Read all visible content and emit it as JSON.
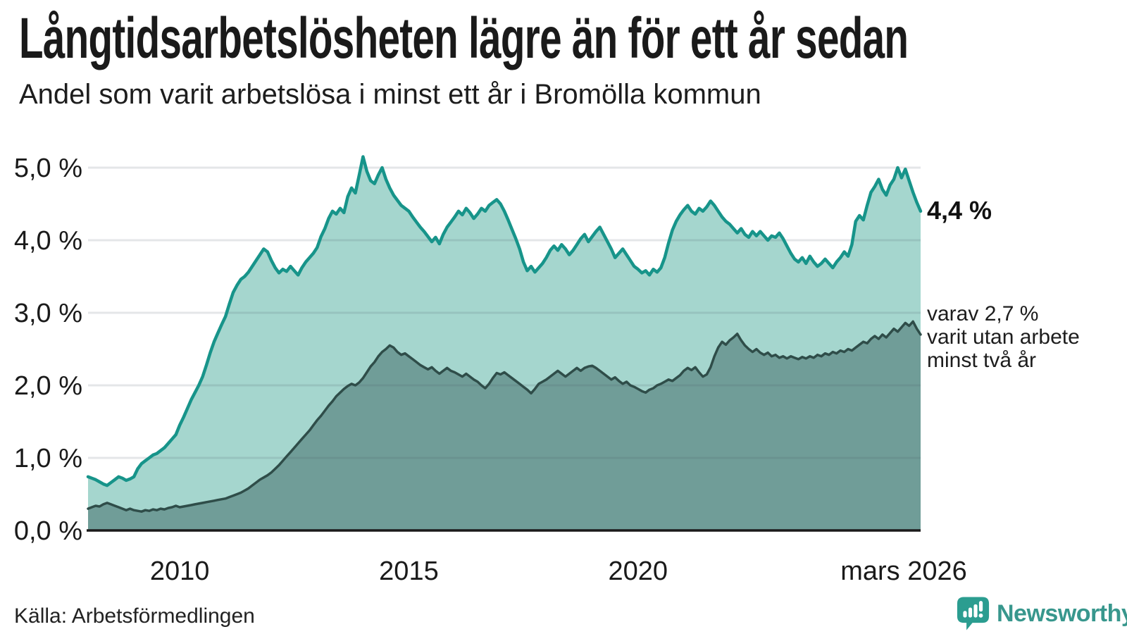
{
  "title": "Långtidsarbetslösheten lägre än för ett år sedan",
  "subtitle": "Andel som varit arbetslösa i minst ett år i Bromölla kommun",
  "source": "Källa: Arbetsförmedlingen",
  "logo": {
    "text": "Newsworthy"
  },
  "colors": {
    "accent_line": "#17948A",
    "accent_fill": "#A5D6CE",
    "secondary_line": "#2F4D49",
    "secondary_fill": "#709D98",
    "grid": "rgba(73,85,98,0.15)",
    "axis": "#1A1A1A",
    "text": "#1A1A1A",
    "logo_bubble": "#2B9D90",
    "logo_text": "#38978D"
  },
  "chart_data": {
    "type": "area",
    "title": "Långtidsarbetslösheten lägre än för ett år sedan",
    "subtitle": "Andel som varit arbetslösa i minst ett år i Bromölla kommun",
    "x_start": "januari 2008",
    "x_end": "mars 2026",
    "x_tick_labels": [
      "2010",
      "2015",
      "2020",
      "mars 2026"
    ],
    "x_ticks": [
      {
        "label": "2010",
        "month": 24
      },
      {
        "label": "2015",
        "month": 84
      },
      {
        "label": "2020",
        "month": 144
      },
      {
        "label": "mars 2026",
        "month": 218
      }
    ],
    "y_tick_labels": [
      "0,0 %",
      "1,0 %",
      "2,0 %",
      "3,0 %",
      "4,0 %",
      "5,0 %"
    ],
    "ylim": [
      0,
      5.4
    ],
    "grid": true,
    "legend_position": "right-annotations",
    "annotations": {
      "end_label_total": "4,4 %",
      "end_label_secondary_line1": "varav 2,7 %",
      "end_label_secondary_line2": "varit utan arbete",
      "end_label_secondary_line3": "minst två år"
    },
    "series": [
      {
        "name": "arbetslösa minst ett år",
        "end_value": 4.4,
        "line_color": "#17948A",
        "fill_color": "#A5D6CE",
        "values": [
          0.74,
          0.72,
          0.7,
          0.67,
          0.64,
          0.62,
          0.66,
          0.7,
          0.74,
          0.72,
          0.69,
          0.71,
          0.74,
          0.85,
          0.92,
          0.96,
          1.0,
          1.04,
          1.06,
          1.1,
          1.14,
          1.2,
          1.26,
          1.32,
          1.45,
          1.56,
          1.68,
          1.8,
          1.9,
          2.0,
          2.12,
          2.28,
          2.45,
          2.6,
          2.72,
          2.84,
          2.95,
          3.12,
          3.28,
          3.38,
          3.46,
          3.5,
          3.56,
          3.64,
          3.72,
          3.8,
          3.88,
          3.84,
          3.72,
          3.62,
          3.55,
          3.6,
          3.57,
          3.64,
          3.58,
          3.52,
          3.62,
          3.7,
          3.76,
          3.82,
          3.9,
          4.05,
          4.16,
          4.3,
          4.4,
          4.36,
          4.44,
          4.38,
          4.6,
          4.72,
          4.65,
          4.9,
          5.15,
          4.95,
          4.82,
          4.78,
          4.9,
          5.0,
          4.84,
          4.72,
          4.62,
          4.55,
          4.48,
          4.44,
          4.4,
          4.32,
          4.25,
          4.18,
          4.12,
          4.05,
          3.98,
          4.04,
          3.95,
          4.08,
          4.18,
          4.25,
          4.32,
          4.4,
          4.35,
          4.44,
          4.38,
          4.3,
          4.36,
          4.44,
          4.4,
          4.48,
          4.52,
          4.56,
          4.5,
          4.4,
          4.28,
          4.15,
          4.02,
          3.88,
          3.7,
          3.58,
          3.64,
          3.56,
          3.62,
          3.68,
          3.76,
          3.86,
          3.92,
          3.86,
          3.94,
          3.88,
          3.8,
          3.86,
          3.94,
          4.02,
          4.08,
          3.98,
          4.05,
          4.12,
          4.18,
          4.08,
          3.98,
          3.88,
          3.76,
          3.82,
          3.88,
          3.8,
          3.72,
          3.64,
          3.6,
          3.55,
          3.58,
          3.52,
          3.6,
          3.56,
          3.62,
          3.76,
          3.96,
          4.14,
          4.26,
          4.35,
          4.42,
          4.48,
          4.4,
          4.36,
          4.44,
          4.4,
          4.46,
          4.54,
          4.48,
          4.4,
          4.32,
          4.26,
          4.22,
          4.16,
          4.1,
          4.16,
          4.08,
          4.04,
          4.12,
          4.06,
          4.12,
          4.06,
          4.0,
          4.06,
          4.04,
          4.1,
          4.02,
          3.92,
          3.82,
          3.74,
          3.7,
          3.76,
          3.68,
          3.78,
          3.7,
          3.64,
          3.68,
          3.74,
          3.68,
          3.62,
          3.7,
          3.76,
          3.84,
          3.78,
          3.94,
          4.26,
          4.34,
          4.28,
          4.48,
          4.66,
          4.74,
          4.84,
          4.7,
          4.62,
          4.76,
          4.84,
          5.0,
          4.86,
          4.98,
          4.82,
          4.66,
          4.52,
          4.4
        ]
      },
      {
        "name": "varav varit utan arbete minst två år",
        "end_value": 2.7,
        "line_color": "#2F4D49",
        "fill_color": "#709D98",
        "values": [
          0.3,
          0.32,
          0.34,
          0.33,
          0.36,
          0.38,
          0.36,
          0.34,
          0.32,
          0.3,
          0.28,
          0.3,
          0.28,
          0.27,
          0.26,
          0.28,
          0.27,
          0.29,
          0.28,
          0.3,
          0.29,
          0.31,
          0.32,
          0.34,
          0.32,
          0.33,
          0.34,
          0.35,
          0.36,
          0.37,
          0.38,
          0.39,
          0.4,
          0.41,
          0.42,
          0.43,
          0.44,
          0.46,
          0.48,
          0.5,
          0.52,
          0.55,
          0.58,
          0.62,
          0.66,
          0.7,
          0.73,
          0.76,
          0.8,
          0.85,
          0.9,
          0.96,
          1.02,
          1.08,
          1.14,
          1.2,
          1.26,
          1.32,
          1.38,
          1.45,
          1.52,
          1.58,
          1.65,
          1.72,
          1.78,
          1.85,
          1.9,
          1.95,
          1.99,
          2.02,
          2.0,
          2.04,
          2.1,
          2.18,
          2.26,
          2.32,
          2.4,
          2.46,
          2.5,
          2.55,
          2.52,
          2.46,
          2.42,
          2.44,
          2.4,
          2.36,
          2.32,
          2.28,
          2.25,
          2.22,
          2.25,
          2.2,
          2.16,
          2.2,
          2.24,
          2.2,
          2.18,
          2.15,
          2.12,
          2.16,
          2.12,
          2.08,
          2.05,
          2.0,
          1.96,
          2.02,
          2.1,
          2.17,
          2.15,
          2.18,
          2.14,
          2.1,
          2.06,
          2.02,
          1.98,
          1.94,
          1.89,
          1.95,
          2.02,
          2.05,
          2.08,
          2.12,
          2.16,
          2.2,
          2.16,
          2.12,
          2.16,
          2.2,
          2.24,
          2.2,
          2.24,
          2.26,
          2.27,
          2.24,
          2.2,
          2.16,
          2.12,
          2.08,
          2.11,
          2.06,
          2.02,
          2.05,
          2.0,
          1.98,
          1.95,
          1.92,
          1.9,
          1.94,
          1.96,
          2.0,
          2.02,
          2.05,
          2.08,
          2.06,
          2.1,
          2.14,
          2.2,
          2.24,
          2.21,
          2.25,
          2.18,
          2.12,
          2.15,
          2.25,
          2.4,
          2.52,
          2.6,
          2.56,
          2.62,
          2.66,
          2.71,
          2.62,
          2.55,
          2.5,
          2.46,
          2.5,
          2.45,
          2.42,
          2.45,
          2.4,
          2.42,
          2.38,
          2.4,
          2.37,
          2.4,
          2.38,
          2.36,
          2.39,
          2.37,
          2.4,
          2.38,
          2.42,
          2.4,
          2.44,
          2.42,
          2.46,
          2.44,
          2.48,
          2.46,
          2.5,
          2.48,
          2.52,
          2.56,
          2.6,
          2.58,
          2.64,
          2.68,
          2.64,
          2.7,
          2.66,
          2.72,
          2.78,
          2.74,
          2.8,
          2.86,
          2.82,
          2.88,
          2.78,
          2.7
        ]
      }
    ]
  }
}
